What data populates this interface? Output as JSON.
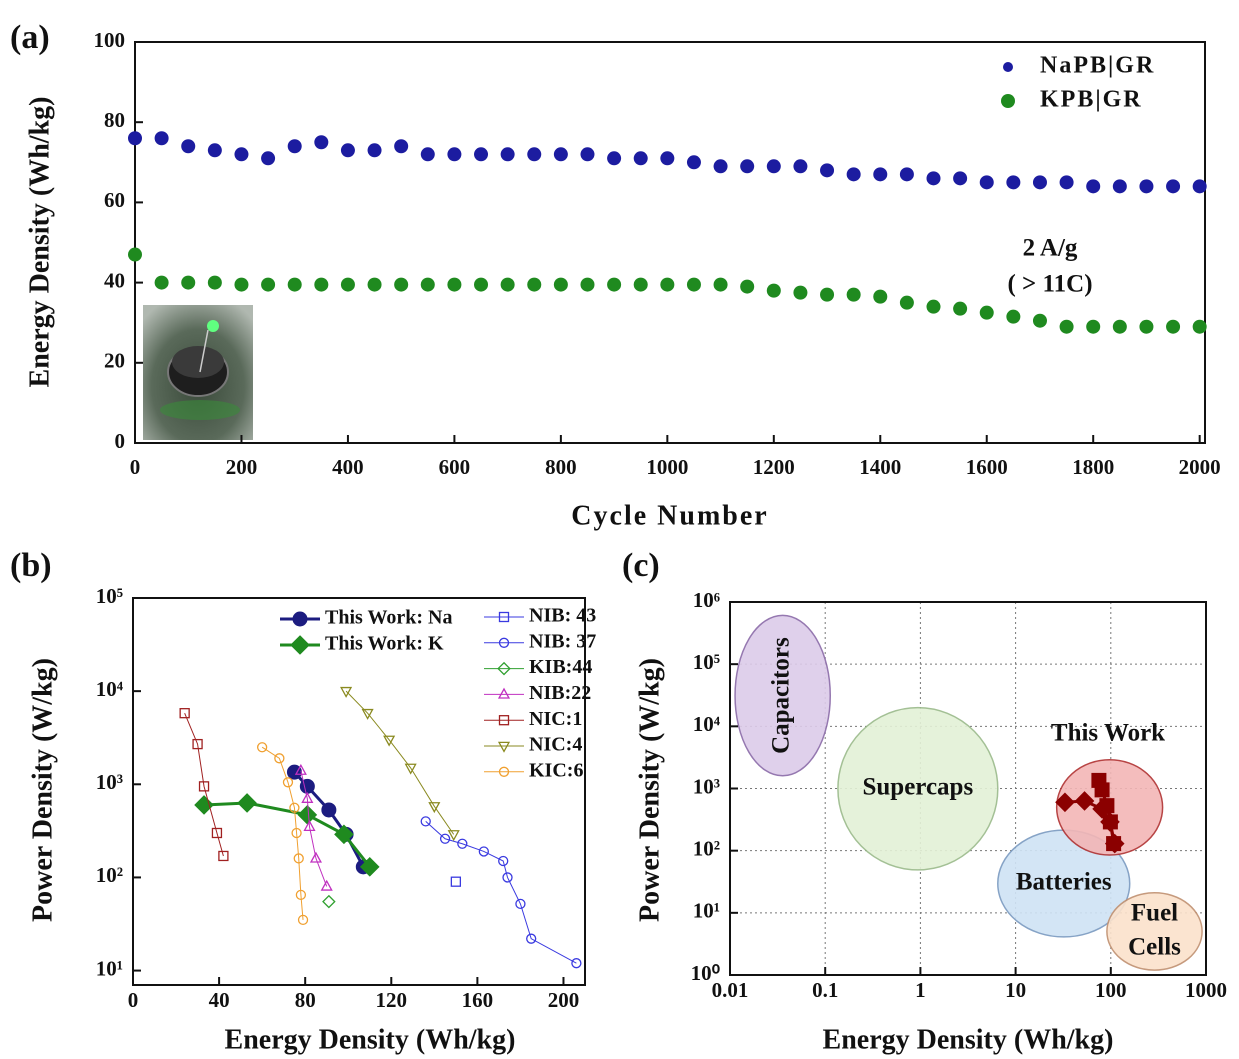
{
  "chart_data": [
    {
      "type": "scatter",
      "label": "(a)",
      "xlabel": "Cycle Number",
      "ylabel": "Energy Density (Wh/kg)",
      "xlim": [
        0,
        2010
      ],
      "xticks": [
        0,
        200,
        400,
        600,
        800,
        1000,
        1200,
        1400,
        1600,
        1800,
        2000
      ],
      "ylim": [
        0,
        100
      ],
      "yticks": [
        0,
        20,
        40,
        60,
        80,
        100
      ],
      "legend": "upper right",
      "annotations": [
        "2 A/g",
        "( > 11C)"
      ],
      "x": [
        0,
        50,
        100,
        150,
        200,
        250,
        300,
        350,
        400,
        450,
        500,
        550,
        600,
        650,
        700,
        750,
        800,
        850,
        900,
        950,
        1000,
        1050,
        1100,
        1150,
        1200,
        1250,
        1300,
        1350,
        1400,
        1450,
        1500,
        1550,
        1600,
        1650,
        1700,
        1750,
        1800,
        1850,
        1900,
        1950,
        2000
      ],
      "series": [
        {
          "name": "NaPB|GR",
          "color": "#1c1ca0",
          "values": [
            76,
            76,
            74,
            73,
            72,
            71,
            74,
            75,
            73,
            73,
            74,
            72,
            72,
            72,
            72,
            72,
            72,
            72,
            71,
            71,
            71,
            70,
            69,
            69,
            69,
            69,
            68,
            67,
            67,
            67,
            66,
            66,
            65,
            65,
            65,
            65,
            64,
            64,
            64,
            64,
            64
          ]
        },
        {
          "name": "KPB|GR",
          "color": "#1f8a1f",
          "values": [
            47,
            40,
            40,
            40,
            39.5,
            39.5,
            39.5,
            39.5,
            39.5,
            39.5,
            39.5,
            39.5,
            39.5,
            39.5,
            39.5,
            39.5,
            39.5,
            39.5,
            39.5,
            39.5,
            39.5,
            39.5,
            39.5,
            39,
            38,
            37.5,
            37,
            37,
            36.5,
            35,
            34,
            33.5,
            32.5,
            31.5,
            30.5,
            29,
            29,
            29,
            29,
            29,
            29
          ]
        }
      ]
    },
    {
      "type": "line",
      "label": "(b)",
      "xlabel": "Energy Density (Wh/kg)",
      "ylabel": "Power Density (W/kg)",
      "xlim": [
        0,
        210
      ],
      "xticks": [
        0,
        40,
        80,
        120,
        160,
        200
      ],
      "yscale": "log",
      "ylim": [
        7,
        100000
      ],
      "yticks": [
        {
          "value": 10,
          "label": "10¹"
        },
        {
          "value": 100,
          "label": "10²"
        },
        {
          "value": 1000,
          "label": "10³"
        },
        {
          "value": 10000,
          "label": "10⁴"
        },
        {
          "value": 100000,
          "label": "10⁵"
        }
      ],
      "legend": "upper center",
      "series": [
        {
          "name": "This Work: Na",
          "color": "#1c1c80",
          "marker": "o",
          "filled": true,
          "x": [
            75,
            81,
            91,
            99,
            107
          ],
          "values": [
            1350,
            950,
            530,
            290,
            130
          ]
        },
        {
          "name": "This Work: K",
          "color": "#1f8a1f",
          "marker": "D",
          "filled": true,
          "x": [
            33,
            53,
            81,
            98,
            110
          ],
          "values": [
            600,
            630,
            470,
            290,
            130
          ]
        },
        {
          "name": "NIB: 43",
          "color": "#3a3ae0",
          "marker": "s",
          "filled": false,
          "x": [
            150
          ],
          "values": [
            90
          ]
        },
        {
          "name": "NIB: 37",
          "color": "#3a3ae0",
          "marker": "o",
          "filled": false,
          "x": [
            136,
            145,
            153,
            163,
            172,
            174,
            180,
            185,
            206
          ],
          "values": [
            400,
            260,
            230,
            190,
            150,
            100,
            52,
            22,
            12
          ]
        },
        {
          "name": "KIB:44",
          "color": "#30a030",
          "marker": "D",
          "filled": false,
          "x": [
            91
          ],
          "values": [
            55
          ]
        },
        {
          "name": "NIB:22",
          "color": "#c030c0",
          "marker": "^",
          "filled": false,
          "x": [
            78,
            81,
            82,
            85,
            90
          ],
          "values": [
            1400,
            700,
            350,
            160,
            80
          ]
        },
        {
          "name": "NIC:1",
          "color": "#a02020",
          "marker": "s",
          "filled": false,
          "x": [
            24,
            30,
            33,
            39,
            42
          ],
          "values": [
            5800,
            2700,
            950,
            300,
            170
          ]
        },
        {
          "name": "NIC:4",
          "color": "#8a8a20",
          "marker": "v",
          "filled": false,
          "x": [
            99,
            109,
            119,
            129,
            140,
            149
          ],
          "values": [
            10000,
            5800,
            3000,
            1500,
            580,
            290
          ]
        },
        {
          "name": "KIC:6",
          "color": "#f0a030",
          "marker": "o",
          "filled": false,
          "x": [
            60,
            68,
            72,
            75,
            76,
            77,
            78,
            79
          ],
          "values": [
            2500,
            1900,
            1050,
            560,
            300,
            160,
            65,
            35
          ]
        }
      ]
    },
    {
      "type": "line",
      "label": "(c)",
      "xlabel": "Energy Density (Wh/kg)",
      "ylabel": "Power Density (W/kg)",
      "xscale": "log",
      "xlim": [
        0.01,
        1000
      ],
      "xticks": [
        0.01,
        0.1,
        1,
        10,
        100,
        1000
      ],
      "yscale": "log",
      "ylim": [
        1,
        1000000
      ],
      "yticks": [
        {
          "value": 1,
          "label": "10⁰"
        },
        {
          "value": 10,
          "label": "10¹"
        },
        {
          "value": 100,
          "label": "10²"
        },
        {
          "value": 1000,
          "label": "10³"
        },
        {
          "value": 10000,
          "label": "10⁴"
        },
        {
          "value": 100000,
          "label": "10⁵"
        },
        {
          "value": 1000000,
          "label": "10⁶"
        }
      ],
      "grid": true,
      "annotations": [
        "This Work"
      ],
      "regions": [
        {
          "label": "Capacitors",
          "fill": "#dccbe9",
          "stroke": "#8a6aa8",
          "x": [
            0.0113,
            0.113
          ],
          "y": [
            1600,
            610000
          ]
        },
        {
          "label": "Supercaps",
          "fill": "#e3f1d6",
          "stroke": "#9aba8a",
          "x": [
            0.136,
            6.5
          ],
          "y": [
            49,
            20000
          ]
        },
        {
          "label": "Batteries",
          "fill": "#cfe3f5",
          "stroke": "#7a9ac0",
          "x": [
            6.5,
            158
          ],
          "y": [
            4.1,
            214
          ]
        },
        {
          "label": "",
          "fill": "#f3b6b6",
          "stroke": "#b03030",
          "x": [
            27,
            350
          ],
          "y": [
            85,
            2900
          ]
        },
        {
          "label": "Fuel Cells",
          "fill": "#fbe2cc",
          "stroke": "#c09070",
          "x": [
            91,
            910
          ],
          "y": [
            1.2,
            21
          ]
        }
      ],
      "series": [
        {
          "color": "#8b0000",
          "marker": "s",
          "filled": true,
          "x": [
            75,
            81,
            91,
            99,
            107
          ],
          "values": [
            1350,
            950,
            530,
            290,
            130
          ]
        },
        {
          "color": "#8b0000",
          "marker": "D",
          "filled": true,
          "x": [
            33,
            53,
            81,
            98,
            110
          ],
          "values": [
            600,
            630,
            470,
            290,
            130
          ]
        }
      ]
    }
  ]
}
